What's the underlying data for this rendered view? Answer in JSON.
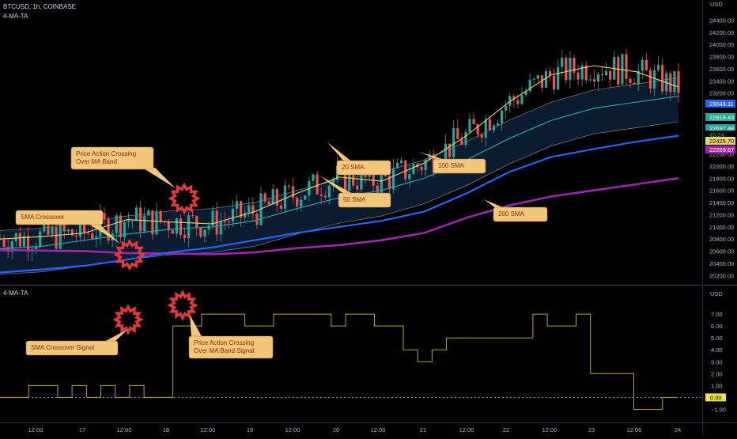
{
  "header": {
    "symbol_line": "BTCUSD, 1h, COINBASE",
    "indicator_top": "4-MA-TA",
    "indicator_bottom": "4-MA-TA"
  },
  "colors": {
    "background": "#000000",
    "up": "#26a69a",
    "down": "#ef5350",
    "sma20": "#e8d46a",
    "sma50": "#26a69a",
    "sma100": "#2962ff",
    "sma200": "#9c27b0",
    "band_fill": "#0d2038",
    "band_line": "#7c8591",
    "signal": "#b7a53c",
    "callout_bg": "#f3c77a",
    "callout_text": "#8b2c12",
    "burst": "#e0393e"
  },
  "chart_data": [
    {
      "type": "candlestick",
      "title": "BTCUSD, 1h, COINBASE",
      "y_unit": "USD",
      "ylim": [
        20100,
        24600
      ],
      "x_ticks": [
        "12:00",
        "17",
        "12:00",
        "18",
        "12:00",
        "19",
        "12:00",
        "20",
        "12:00",
        "21",
        "12:00",
        "22",
        "12:00",
        "23",
        "12:00",
        "24"
      ],
      "y_ticks": [
        20200,
        20400,
        20600,
        20800,
        21000,
        21200,
        21400,
        21600,
        21800,
        22000,
        22200,
        22400,
        22600,
        22800,
        23000,
        23200,
        23400,
        23600,
        23800,
        24000,
        24200,
        24400
      ],
      "price_labels": [
        {
          "value": "23043.11",
          "color": "#2962ff"
        },
        {
          "value": "22819.43",
          "color": "#26a69a"
        },
        {
          "value": "22637.48",
          "color": "#26a69a"
        },
        {
          "value": "45:24",
          "color": "#26a69a"
        },
        {
          "value": "22425.70",
          "color": "#e8d46a"
        },
        {
          "value": "22269.67",
          "color": "#9c27b0"
        }
      ],
      "series": [
        {
          "name": "20 SMA",
          "x": [
            0,
            10,
            20,
            30,
            40,
            50,
            60,
            70,
            80,
            90,
            100,
            110,
            120,
            130,
            140,
            150,
            160
          ],
          "values": [
            20800,
            20840,
            20900,
            21120,
            21080,
            21050,
            21250,
            21550,
            21820,
            21750,
            22050,
            22500,
            23050,
            23500,
            23650,
            23550,
            23300
          ]
        },
        {
          "name": "50 SMA",
          "x": [
            0,
            10,
            20,
            30,
            40,
            50,
            60,
            70,
            80,
            90,
            100,
            110,
            120,
            130,
            140,
            150,
            160
          ],
          "values": [
            20640,
            20680,
            20780,
            20880,
            20960,
            21000,
            21100,
            21300,
            21480,
            21600,
            21800,
            22100,
            22450,
            22750,
            22950,
            23050,
            23150
          ]
        },
        {
          "name": "100 SMA",
          "x": [
            0,
            10,
            20,
            30,
            40,
            50,
            60,
            70,
            80,
            90,
            100,
            110,
            120,
            130,
            140,
            150,
            160
          ],
          "values": [
            20250,
            20300,
            20360,
            20460,
            20580,
            20660,
            20780,
            20900,
            21000,
            21100,
            21250,
            21550,
            21900,
            22150,
            22280,
            22400,
            22500
          ]
        },
        {
          "name": "200 SMA",
          "x": [
            0,
            10,
            20,
            30,
            40,
            50,
            60,
            70,
            80,
            90,
            100,
            110,
            120,
            130,
            140,
            150,
            160
          ],
          "values": [
            20620,
            20610,
            20600,
            20570,
            20560,
            20550,
            20580,
            20650,
            20700,
            20780,
            20900,
            21150,
            21350,
            21500,
            21600,
            21700,
            21800
          ]
        }
      ],
      "annotations": [
        "Price Action Crossing Over MA Band",
        "SMA Crossover",
        "20 SMA",
        "50 SMA",
        "100 SMA",
        "200 SMA"
      ]
    },
    {
      "type": "line",
      "title": "4-MA-TA",
      "y_unit": "USD",
      "ylim": [
        -1.5,
        8
      ],
      "y_ticks": [
        -1,
        0,
        1,
        2,
        3,
        4,
        5,
        6,
        7
      ],
      "y_tick_labels": [
        "−1.00",
        "0.00",
        "1.00",
        "2.00",
        "3.00",
        "4.00",
        "5.00",
        "6.00",
        "7.00"
      ],
      "current_value_label": "0.00",
      "step_values": [
        0,
        0,
        1,
        1,
        0,
        1,
        0,
        1,
        0,
        1,
        0,
        0,
        6,
        6,
        7,
        7,
        7,
        6,
        6,
        7,
        7,
        7,
        7,
        6,
        7,
        7,
        6,
        6,
        4,
        3,
        4,
        5,
        5,
        5,
        5,
        5,
        5,
        7,
        6,
        6,
        7,
        2,
        2,
        2,
        -1,
        -1,
        0
      ],
      "annotations": [
        "SMA Crossover Signal",
        "Price Action Crossing Over MA Band Signal"
      ]
    }
  ],
  "callouts": {
    "price_action": [
      "Price Action Crossing",
      "Over MA Band"
    ],
    "sma_crossover": [
      "SMA Crossover"
    ],
    "sma20": [
      "20 SMA"
    ],
    "sma50": [
      "50 SMA"
    ],
    "sma100": [
      "100 SMA"
    ],
    "sma200": [
      "200 SMA"
    ],
    "sma_signal": [
      "SMA Crossover Signal"
    ],
    "price_action_signal": [
      "Price Action Crossing",
      "Over MA Band Signal"
    ]
  }
}
